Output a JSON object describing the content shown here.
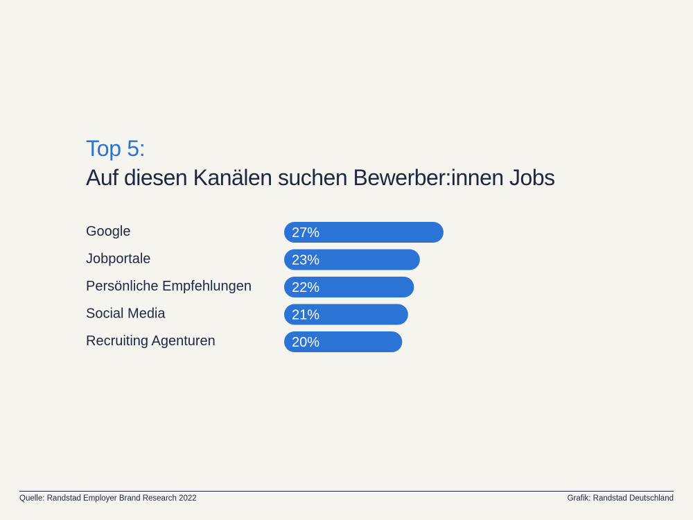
{
  "title": {
    "line1": "Top 5:",
    "line2": "Auf diesen Kanälen suchen Bewerber:innen Jobs"
  },
  "colors": {
    "accent": "#2b74d6",
    "bar": "#2b74d6",
    "text": "#1f2640",
    "background": "#f5f4ef"
  },
  "chart_data": {
    "type": "bar",
    "orientation": "horizontal",
    "title": "Top 5: Auf diesen Kanälen suchen Bewerber:innen Jobs",
    "categories": [
      "Google",
      "Jobportale",
      "Persönliche Empfehlungen",
      "Social Media",
      "Recruiting Agenturen"
    ],
    "values": [
      27,
      23,
      22,
      21,
      20
    ],
    "value_labels": [
      "27%",
      "23%",
      "22%",
      "21%",
      "20%"
    ],
    "unit": "%",
    "xlim": [
      0,
      27
    ],
    "grid": false,
    "legend": "none"
  },
  "footer": {
    "source": "Quelle: Randstad Employer Brand Research 2022",
    "credit": "Grafik: Randstad Deutschland"
  }
}
